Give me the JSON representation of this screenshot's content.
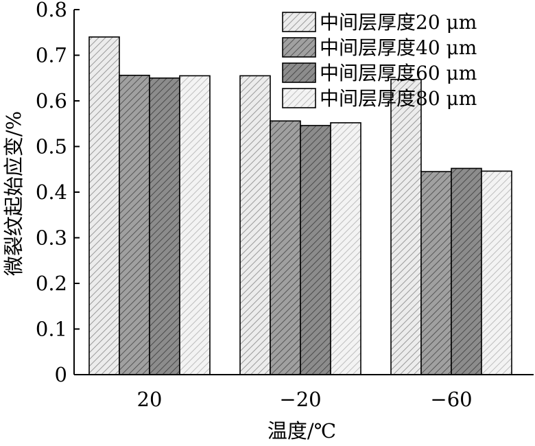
{
  "chart_data": {
    "type": "bar",
    "title": "",
    "xlabel": "温度/℃",
    "ylabel": "微裂纹起始应变/%",
    "categories": [
      "20",
      "−20",
      "−60"
    ],
    "ylim": [
      0,
      0.8
    ],
    "yticks": [
      "0",
      "0.1",
      "0.2",
      "0.3",
      "0.4",
      "0.5",
      "0.6",
      "0.7",
      "0.8"
    ],
    "grid": false,
    "legend_position": "top-right",
    "series": [
      {
        "name": "中间层厚度20 μm",
        "values": [
          0.74,
          0.655,
          0.647
        ],
        "color": "#a8a8a8"
      },
      {
        "name": "中间层厚度40 μm",
        "values": [
          0.656,
          0.556,
          0.445
        ],
        "color": "#888888"
      },
      {
        "name": "中间层厚度60 μm",
        "values": [
          0.65,
          0.546,
          0.452
        ],
        "color": "#777777"
      },
      {
        "name": "中间层厚度80 μm",
        "values": [
          0.655,
          0.552,
          0.446
        ],
        "color": "#e0e0e0"
      }
    ]
  }
}
